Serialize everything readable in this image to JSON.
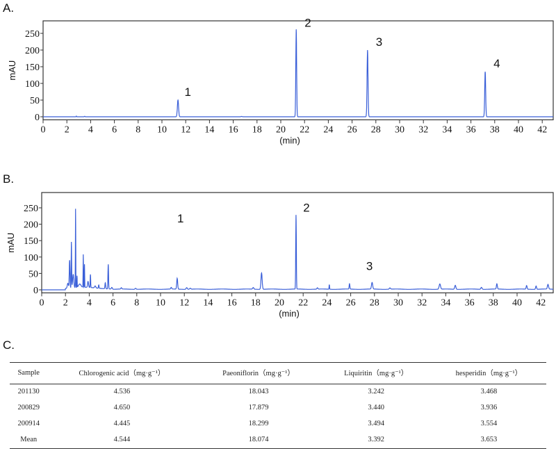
{
  "panels": {
    "a": "A.",
    "b": "B.",
    "c": "C."
  },
  "chart_data": [
    {
      "type": "line",
      "title": "A.",
      "xlabel": "(min)",
      "ylabel": "mAU",
      "xlim": [
        0,
        44
      ],
      "ylim": [
        -5,
        285
      ],
      "xticks": [
        0,
        2,
        4,
        6,
        8,
        10,
        12,
        14,
        16,
        18,
        20,
        22,
        24,
        26,
        28,
        30,
        32,
        34,
        36,
        38,
        40,
        42
      ],
      "yticks": [
        0,
        50,
        100,
        150,
        200,
        250
      ],
      "color": "#3a5fd8",
      "baseline": 0,
      "peaks": [
        {
          "t": 2.8,
          "h": 2,
          "w": 0.04
        },
        {
          "t": 3.5,
          "h": 1.5,
          "w": 0.05
        },
        {
          "t": 11.35,
          "h": 50,
          "w": 0.1
        },
        {
          "t": 16.7,
          "h": 1,
          "w": 0.1
        },
        {
          "t": 21.3,
          "h": 262,
          "w": 0.07
        },
        {
          "t": 27.3,
          "h": 200,
          "w": 0.08
        },
        {
          "t": 37.2,
          "h": 135,
          "w": 0.08
        }
      ],
      "annotations": [
        {
          "text": "1",
          "t": 11.9,
          "y": 62
        },
        {
          "text": "2",
          "t": 22.0,
          "y": 270
        },
        {
          "text": "3",
          "t": 28.0,
          "y": 212
        },
        {
          "text": "4",
          "t": 37.9,
          "y": 148
        }
      ]
    },
    {
      "type": "line",
      "title": "B.",
      "xlabel": "(min)",
      "ylabel": "mAU",
      "xlim": [
        0,
        44
      ],
      "ylim": [
        -5,
        285
      ],
      "xticks": [
        0,
        2,
        4,
        6,
        8,
        10,
        12,
        14,
        16,
        18,
        20,
        22,
        24,
        26,
        28,
        30,
        32,
        34,
        36,
        38,
        40,
        42
      ],
      "yticks": [
        0,
        50,
        100,
        150,
        200,
        250
      ],
      "color": "#3a5fd8",
      "baseline": 2,
      "peaks": [
        {
          "t": 2.2,
          "h": 15,
          "w": 0.1
        },
        {
          "t": 2.35,
          "h": 85,
          "w": 0.06
        },
        {
          "t": 2.5,
          "h": 140,
          "w": 0.04
        },
        {
          "t": 2.65,
          "h": 40,
          "w": 0.1
        },
        {
          "t": 2.85,
          "h": 240,
          "w": 0.03
        },
        {
          "t": 2.97,
          "h": 35,
          "w": 0.03
        },
        {
          "t": 3.2,
          "h": 10,
          "w": 0.2
        },
        {
          "t": 3.5,
          "h": 100,
          "w": 0.03
        },
        {
          "t": 3.6,
          "h": 70,
          "w": 0.03
        },
        {
          "t": 3.9,
          "h": 18,
          "w": 0.08
        },
        {
          "t": 4.1,
          "h": 40,
          "w": 0.04
        },
        {
          "t": 4.5,
          "h": 6,
          "w": 0.1
        },
        {
          "t": 4.8,
          "h": 10,
          "w": 0.05
        },
        {
          "t": 5.35,
          "h": 18,
          "w": 0.06
        },
        {
          "t": 5.6,
          "h": 75,
          "w": 0.05
        },
        {
          "t": 5.9,
          "h": 5,
          "w": 0.08
        },
        {
          "t": 6.7,
          "h": 4,
          "w": 0.08
        },
        {
          "t": 7.9,
          "h": 3,
          "w": 0.1
        },
        {
          "t": 10.9,
          "h": 5,
          "w": 0.08
        },
        {
          "t": 11.4,
          "h": 33,
          "w": 0.08
        },
        {
          "t": 12.2,
          "h": 5,
          "w": 0.1
        },
        {
          "t": 12.5,
          "h": 3,
          "w": 0.1
        },
        {
          "t": 17.8,
          "h": 5,
          "w": 0.1
        },
        {
          "t": 18.5,
          "h": 50,
          "w": 0.1
        },
        {
          "t": 21.4,
          "h": 226,
          "w": 0.05
        },
        {
          "t": 23.2,
          "h": 4,
          "w": 0.08
        },
        {
          "t": 24.2,
          "h": 14,
          "w": 0.04
        },
        {
          "t": 25.9,
          "h": 16,
          "w": 0.06
        },
        {
          "t": 27.8,
          "h": 20,
          "w": 0.1
        },
        {
          "t": 29.3,
          "h": 4,
          "w": 0.1
        },
        {
          "t": 33.5,
          "h": 16,
          "w": 0.12
        },
        {
          "t": 34.8,
          "h": 12,
          "w": 0.1
        },
        {
          "t": 37,
          "h": 6,
          "w": 0.1
        },
        {
          "t": 38.3,
          "h": 16,
          "w": 0.08
        },
        {
          "t": 40.8,
          "h": 11,
          "w": 0.08
        },
        {
          "t": 41.6,
          "h": 10,
          "w": 0.08
        },
        {
          "t": 42.6,
          "h": 14,
          "w": 0.1
        }
      ],
      "annotations": [
        {
          "text": "1",
          "t": 11.4,
          "y": 205
        },
        {
          "text": "2",
          "t": 22.0,
          "y": 238
        },
        {
          "text": "3",
          "t": 27.3,
          "y": 60
        }
      ]
    }
  ],
  "table": {
    "headers": [
      "Sample",
      "Chlorogenic acid（mg·g⁻¹）",
      "Paeoniflorin（mg·g⁻¹）",
      "Liquiritin（mg·g⁻¹）",
      "hesperidin（mg·g⁻¹）"
    ],
    "rows": [
      [
        "201130",
        "4.536",
        "18.043",
        "3.242",
        "3.468"
      ],
      [
        "200829",
        "4.650",
        "17.879",
        "3.440",
        "3.936"
      ],
      [
        "200914",
        "4.445",
        "18.299",
        "3.494",
        "3.554"
      ],
      [
        "Mean",
        "4.544",
        "18.074",
        "3.392",
        "3.653"
      ]
    ]
  }
}
